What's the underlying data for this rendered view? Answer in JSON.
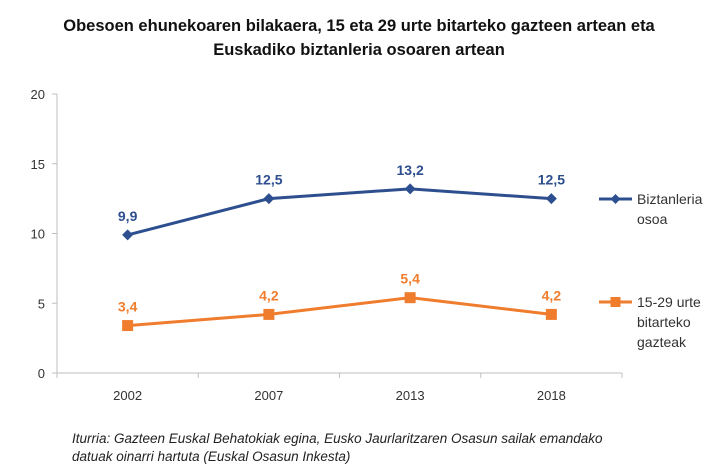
{
  "title": {
    "line1": "Obesoen ehunekoaren bilakaera, 15 eta 29 urte bitarteko gazteen artean eta",
    "line2": "Euskadiko biztanleria osoaren artean"
  },
  "source": {
    "line1": "Iturria: Gazteen Euskal Behatokiak egina, Eusko Jaurlaritzaren Osasun sailak emandako",
    "line2": "datuak oinarri hartuta (Euskal Osasun Inkesta)"
  },
  "chart_data": {
    "type": "line",
    "categories": [
      "2002",
      "2007",
      "2013",
      "2018"
    ],
    "ylim": [
      0,
      20
    ],
    "yticks": [
      "0",
      "5",
      "10",
      "15",
      "20"
    ],
    "grid": false,
    "legend_position": "right",
    "series": [
      {
        "name_lines": [
          "Biztanleria",
          "osoa"
        ],
        "values": [
          9.9,
          12.5,
          13.2,
          12.5
        ],
        "labels": [
          "9,9",
          "12,5",
          "13,2",
          "12,5"
        ],
        "color": "#2e4f8f",
        "marker": "diamond"
      },
      {
        "name_lines": [
          "15-29 urte",
          "bitarteko",
          "gazteak"
        ],
        "values": [
          3.4,
          4.2,
          5.4,
          4.2
        ],
        "labels": [
          "3,4",
          "4,2",
          "5,4",
          "4,2"
        ],
        "color": "#ef7d2d",
        "marker": "square"
      }
    ]
  }
}
